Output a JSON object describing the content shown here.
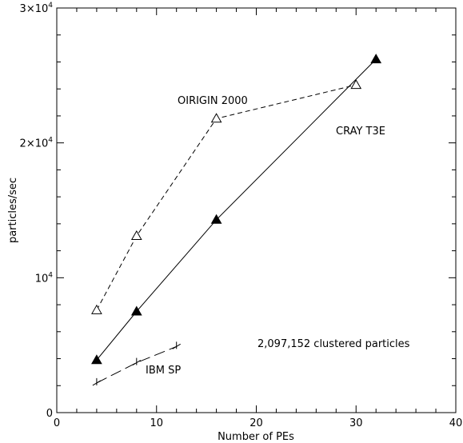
{
  "chart_data": {
    "type": "line",
    "xlabel": "Number of PEs",
    "ylabel": "particles/sec",
    "xlim": [
      0,
      40
    ],
    "ylim": [
      0,
      30000
    ],
    "x_ticks": [
      0,
      10,
      20,
      30,
      40
    ],
    "x_tick_labels": [
      "0",
      "10",
      "20",
      "30",
      "40"
    ],
    "y_ticks": [
      0,
      10000,
      20000,
      30000
    ],
    "y_tick_labels": [
      {
        "base": "0",
        "exp": ""
      },
      {
        "base": "10",
        "exp": "4"
      },
      {
        "base": "2×10",
        "exp": "4"
      },
      {
        "base": "3×10",
        "exp": "4"
      }
    ],
    "grid": false,
    "series": [
      {
        "name": "OIRIGIN 2000",
        "marker": "open-triangle",
        "dash": "short",
        "x": [
          4,
          8,
          16,
          30
        ],
        "y": [
          7600,
          13100,
          21800,
          24300
        ]
      },
      {
        "name": "CRAY T3E",
        "marker": "filled-triangle",
        "dash": "solid",
        "x": [
          4,
          8,
          16,
          32
        ],
        "y": [
          3900,
          7500,
          14300,
          26200
        ]
      },
      {
        "name": "IBM SP",
        "marker": "tick",
        "dash": "long",
        "x": [
          4,
          8,
          12
        ],
        "y": [
          2200,
          3700,
          4900
        ]
      }
    ],
    "annotations": [
      "OIRIGIN 2000",
      "CRAY T3E",
      "IBM SP",
      "2,097,152 clustered particles"
    ]
  }
}
